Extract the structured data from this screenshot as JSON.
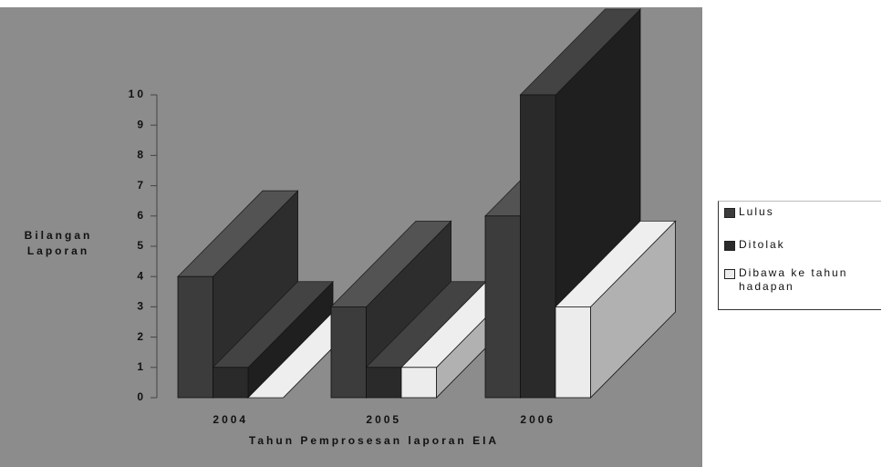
{
  "chart_data": {
    "type": "bar3d",
    "y_label": "Bilangan Laporan",
    "x_label": "Tahun Pemprosesan laporan EIA",
    "categories": [
      "2004",
      "2005",
      "2006"
    ],
    "series": [
      {
        "name": "Lulus",
        "color": "#3c3c3c",
        "values": [
          4,
          3,
          6
        ]
      },
      {
        "name": "Ditolak",
        "color": "#2a2a2a",
        "values": [
          1,
          1,
          10
        ]
      },
      {
        "name": "Dibawa ke tahun hadapan",
        "color": "#ececec",
        "values": [
          0,
          1,
          3
        ]
      }
    ],
    "ylim": [
      0,
      10
    ],
    "yticks": [
      0,
      1,
      2,
      3,
      4,
      5,
      6,
      7,
      8,
      9,
      10
    ],
    "legend": "right"
  }
}
